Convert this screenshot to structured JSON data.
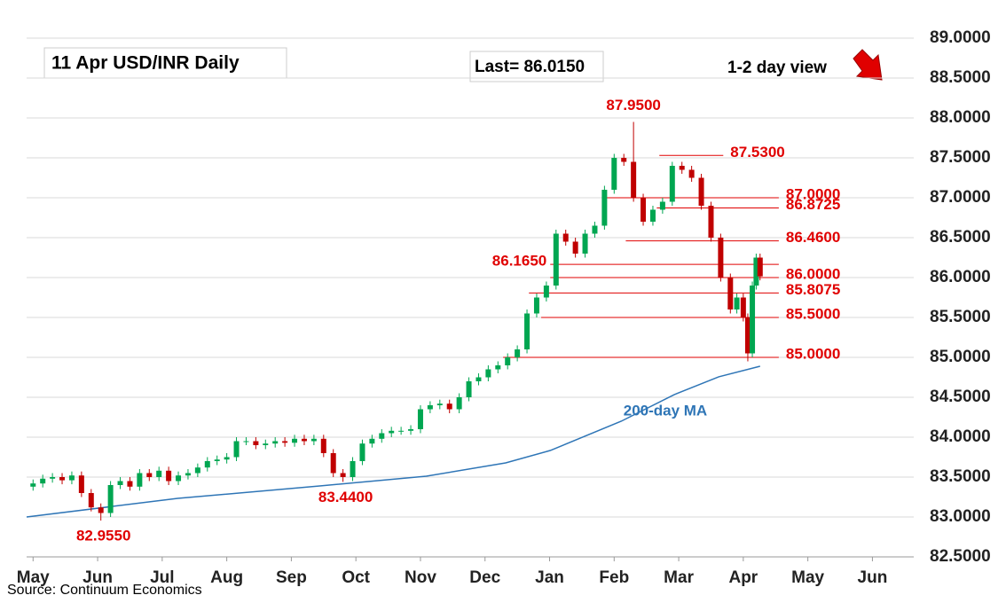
{
  "chart_data": {
    "type": "candlestick",
    "title": "11 Apr  USD/INR  Daily",
    "last_label": "Last= 86.0150",
    "view": "1-2 day view",
    "source": "Source: Continuum Economics",
    "up_color": "#00a651",
    "down_color": "#c00000",
    "xlim": [
      -0.1,
      13.64
    ],
    "xticks": [
      {
        "value": 0,
        "label": "May"
      },
      {
        "value": 1,
        "label": "Jun"
      },
      {
        "value": 2,
        "label": "Jul"
      },
      {
        "value": 3,
        "label": "Aug"
      },
      {
        "value": 4,
        "label": "Sep"
      },
      {
        "value": 5,
        "label": "Oct"
      },
      {
        "value": 6,
        "label": "Nov"
      },
      {
        "value": 7,
        "label": "Dec"
      },
      {
        "value": 8,
        "label": "Jan"
      },
      {
        "value": 9,
        "label": "Feb"
      },
      {
        "value": 10,
        "label": "Mar"
      },
      {
        "value": 11,
        "label": "Apr"
      },
      {
        "value": 12,
        "label": "May"
      },
      {
        "value": 13,
        "label": "Jun"
      }
    ],
    "ylim": [
      82.5,
      89.0
    ],
    "yticks": [
      {
        "value": 82.5,
        "label": "82.5000"
      },
      {
        "value": 83,
        "label": "83.0000"
      },
      {
        "value": 83.5,
        "label": "83.5000"
      },
      {
        "value": 84,
        "label": "84.0000"
      },
      {
        "value": 84.5,
        "label": "84.5000"
      },
      {
        "value": 85,
        "label": "85.0000"
      },
      {
        "value": 85.5,
        "label": "85.5000"
      },
      {
        "value": 86,
        "label": "86.0000"
      },
      {
        "value": 86.5,
        "label": "86.5000"
      },
      {
        "value": 87,
        "label": "87.0000"
      },
      {
        "value": 87.5,
        "label": "87.5000"
      },
      {
        "value": 88,
        "label": "88.0000"
      },
      {
        "value": 88.5,
        "label": "88.5000"
      },
      {
        "value": 89,
        "label": "89.0000"
      }
    ],
    "grid": true,
    "x": [
      0,
      0.15,
      0.3,
      0.45,
      0.6,
      0.75,
      0.9,
      1.05,
      1.2,
      1.35,
      1.5,
      1.65,
      1.8,
      1.95,
      2.1,
      2.25,
      2.4,
      2.55,
      2.7,
      2.85,
      3.0,
      3.15,
      3.3,
      3.45,
      3.6,
      3.75,
      3.9,
      4.05,
      4.2,
      4.35,
      4.5,
      4.65,
      4.8,
      4.95,
      5.1,
      5.25,
      5.4,
      5.55,
      5.7,
      5.85,
      6.0,
      6.15,
      6.3,
      6.45,
      6.6,
      6.75,
      6.9,
      7.05,
      7.2,
      7.35,
      7.5,
      7.65,
      7.8,
      7.95,
      8.1,
      8.25,
      8.4,
      8.55,
      8.7,
      8.85,
      9.0,
      9.15,
      9.3,
      9.45,
      9.6,
      9.75,
      9.9,
      10.05,
      10.2,
      10.35,
      10.5,
      10.65,
      10.8,
      10.9,
      11.0,
      11.07,
      11.14,
      11.2,
      11.26
    ],
    "open": [
      83.38,
      83.42,
      83.48,
      83.5,
      83.46,
      83.52,
      83.3,
      83.12,
      83.05,
      83.4,
      83.45,
      83.38,
      83.55,
      83.5,
      83.58,
      83.45,
      83.52,
      83.55,
      83.62,
      83.7,
      83.72,
      83.75,
      83.95,
      83.95,
      83.9,
      83.92,
      83.95,
      83.93,
      83.98,
      83.95,
      83.98,
      83.8,
      83.55,
      83.5,
      83.7,
      83.92,
      83.98,
      84.05,
      84.08,
      84.08,
      84.1,
      84.35,
      84.4,
      84.42,
      84.35,
      84.5,
      84.7,
      84.75,
      84.85,
      84.9,
      85.0,
      85.1,
      85.55,
      85.75,
      85.9,
      86.55,
      86.45,
      86.3,
      86.55,
      86.65,
      87.1,
      87.5,
      87.45,
      87.0,
      86.7,
      86.85,
      86.95,
      87.4,
      87.35,
      87.25,
      86.9,
      86.5,
      86.0,
      85.6,
      85.75,
      85.5,
      85.05,
      85.9,
      86.25
    ],
    "high": [
      83.47,
      83.53,
      83.55,
      83.55,
      83.57,
      83.57,
      83.35,
      83.17,
      83.45,
      83.5,
      83.5,
      83.6,
      83.6,
      83.63,
      83.63,
      83.57,
      83.6,
      83.67,
      83.75,
      83.77,
      83.8,
      84.0,
      84.0,
      84.0,
      83.97,
      84.0,
      84.0,
      84.03,
      84.03,
      84.03,
      84.03,
      83.85,
      83.6,
      83.75,
      83.97,
      84.03,
      84.1,
      84.13,
      84.13,
      84.15,
      84.4,
      84.45,
      84.47,
      84.47,
      84.55,
      84.75,
      84.8,
      84.9,
      84.95,
      85.05,
      85.15,
      85.6,
      85.8,
      85.95,
      86.6,
      86.6,
      86.5,
      86.6,
      86.7,
      87.15,
      87.55,
      87.55,
      87.95,
      87.05,
      86.9,
      87.0,
      87.45,
      87.45,
      87.4,
      87.3,
      86.95,
      86.55,
      86.05,
      85.8,
      85.8,
      85.55,
      85.95,
      86.3,
      86.3
    ],
    "low": [
      83.33,
      83.37,
      83.43,
      83.41,
      83.41,
      83.25,
      83.07,
      82.955,
      83.0,
      83.35,
      83.33,
      83.33,
      83.45,
      83.45,
      83.4,
      83.4,
      83.47,
      83.5,
      83.57,
      83.65,
      83.67,
      83.7,
      83.9,
      83.85,
      83.85,
      83.87,
      83.88,
      83.88,
      83.9,
      83.9,
      83.75,
      83.5,
      83.44,
      83.45,
      83.65,
      83.87,
      83.93,
      84.0,
      84.03,
      84.03,
      84.05,
      84.3,
      84.35,
      84.3,
      84.3,
      84.45,
      84.65,
      84.7,
      84.8,
      84.85,
      84.95,
      85.05,
      85.5,
      85.7,
      85.85,
      86.4,
      86.25,
      86.25,
      86.5,
      86.6,
      87.05,
      87.4,
      86.95,
      86.65,
      86.65,
      86.8,
      86.9,
      87.3,
      87.2,
      86.85,
      86.45,
      85.95,
      85.55,
      85.55,
      85.45,
      84.95,
      85.0,
      85.85,
      85.965
    ],
    "close": [
      83.42,
      83.48,
      83.5,
      83.46,
      83.52,
      83.3,
      83.12,
      83.05,
      83.4,
      83.45,
      83.38,
      83.55,
      83.5,
      83.58,
      83.45,
      83.52,
      83.55,
      83.62,
      83.7,
      83.72,
      83.75,
      83.95,
      83.95,
      83.9,
      83.92,
      83.95,
      83.93,
      83.98,
      83.95,
      83.98,
      83.8,
      83.55,
      83.5,
      83.7,
      83.92,
      83.98,
      84.05,
      84.08,
      84.08,
      84.1,
      84.35,
      84.4,
      84.42,
      84.35,
      84.5,
      84.7,
      84.75,
      84.85,
      84.9,
      85.0,
      85.1,
      85.55,
      85.75,
      85.9,
      86.55,
      86.45,
      86.3,
      86.55,
      86.65,
      87.1,
      87.5,
      87.45,
      87.0,
      86.7,
      86.85,
      86.95,
      87.4,
      87.35,
      87.25,
      86.9,
      86.5,
      86.0,
      85.6,
      85.75,
      85.5,
      85.05,
      85.9,
      86.25,
      86.015
    ],
    "ma": {
      "name": "200-day MA",
      "color": "#2e75b6",
      "x": [
        -0.1,
        2.24,
        4.44,
        6.09,
        7.32,
        8.01,
        9.11,
        9.93,
        10.62,
        11.26
      ],
      "values": [
        83.0,
        83.233,
        83.389,
        83.511,
        83.678,
        83.833,
        84.2,
        84.533,
        84.756,
        84.889
      ]
    },
    "level_color": "#e00000",
    "levels": [
      {
        "value": 87.53,
        "label": "87.5300",
        "x": [
          9.7,
          10.69
        ]
      },
      {
        "value": 87.0,
        "label": "87.0000",
        "x": [
          8.87,
          11.55
        ]
      },
      {
        "value": 86.8725,
        "label": "86.8725",
        "x": [
          9.66,
          11.55
        ]
      },
      {
        "value": 86.46,
        "label": "86.4600",
        "x": [
          9.18,
          11.55
        ]
      },
      {
        "value": 86.165,
        "label": "86.1650",
        "x": [
          8.01,
          11.55
        ]
      },
      {
        "value": 86.0,
        "label": "86.0000",
        "x": [
          8.01,
          11.55
        ]
      },
      {
        "value": 85.8075,
        "label": "85.8075",
        "x": [
          7.68,
          11.55
        ]
      },
      {
        "value": 85.5,
        "label": "85.5000",
        "x": [
          7.87,
          11.55
        ]
      },
      {
        "value": 85.0,
        "label": "85.0000",
        "x": [
          7.28,
          11.55
        ]
      }
    ],
    "annotations": [
      {
        "label": "87.9500",
        "x": 9.3,
        "value": 87.95
      },
      {
        "label": "83.4400",
        "x": 4.8,
        "value": 83.44
      },
      {
        "label": "82.9550",
        "x": 1.05,
        "value": 82.955
      }
    ]
  }
}
